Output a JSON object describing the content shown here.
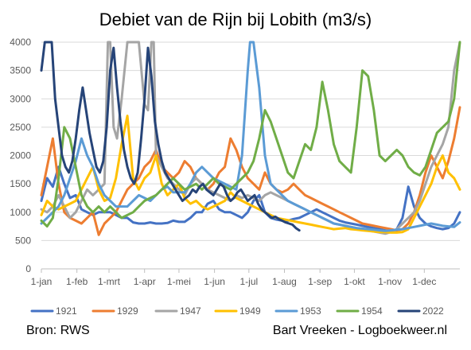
{
  "footer": {
    "source": "Bron: RWS",
    "credit": "Bart Vreeken - Logboekweer.nl"
  },
  "chart_data": {
    "type": "line",
    "title": "Debiet van de Rijn bij Lobith (m3/s)",
    "xlabel": "",
    "ylabel": "",
    "ylim": [
      0,
      4000
    ],
    "y_ticks": [
      0,
      500,
      1000,
      1500,
      2000,
      2500,
      3000,
      3500,
      4000
    ],
    "x_range_days": [
      0,
      365
    ],
    "x_ticks": [
      {
        "label": "1-jan",
        "day": 0
      },
      {
        "label": "1-feb",
        "day": 31
      },
      {
        "label": "1-mrt",
        "day": 59
      },
      {
        "label": "1-apr",
        "day": 90
      },
      {
        "label": "1-mei",
        "day": 120
      },
      {
        "label": "1-jun",
        "day": 151
      },
      {
        "label": "1-jul",
        "day": 181
      },
      {
        "label": "1-aug",
        "day": 212
      },
      {
        "label": "1-sep",
        "day": 243
      },
      {
        "label": "1-okt",
        "day": 273
      },
      {
        "label": "1-nov",
        "day": 304
      },
      {
        "label": "1-dec",
        "day": 334
      }
    ],
    "grid": true,
    "legend_position": "bottom",
    "series": [
      {
        "name": "1921",
        "color": "#4472C4",
        "x": [
          0,
          5,
          10,
          15,
          20,
          25,
          30,
          35,
          40,
          45,
          50,
          55,
          60,
          65,
          70,
          75,
          80,
          85,
          90,
          95,
          100,
          105,
          110,
          115,
          120,
          125,
          130,
          135,
          140,
          145,
          150,
          155,
          160,
          165,
          170,
          175,
          180,
          185,
          190,
          195,
          200,
          205,
          210,
          215,
          220,
          225,
          230,
          235,
          240,
          245,
          250,
          255,
          260,
          265,
          270,
          275,
          280,
          285,
          290,
          295,
          300,
          305,
          310,
          315,
          320,
          325,
          330,
          335,
          340,
          345,
          350,
          355,
          360,
          365
        ],
        "y": [
          1200,
          1600,
          1450,
          1800,
          1500,
          1250,
          1300,
          1050,
          1000,
          950,
          1000,
          1000,
          1000,
          950,
          900,
          900,
          820,
          800,
          800,
          820,
          800,
          800,
          810,
          850,
          830,
          830,
          900,
          1000,
          1000,
          1150,
          1200,
          1050,
          1000,
          1000,
          950,
          900,
          1000,
          1200,
          1300,
          1000,
          900,
          870,
          850,
          850,
          880,
          900,
          950,
          1000,
          1050,
          1000,
          950,
          900,
          850,
          820,
          800,
          780,
          760,
          740,
          720,
          700,
          680,
          660,
          700,
          900,
          1450,
          1100,
          900,
          800,
          750,
          720,
          700,
          720,
          800,
          1000
        ]
      },
      {
        "name": "1929",
        "color": "#ED7D31",
        "x": [
          0,
          5,
          10,
          15,
          20,
          25,
          30,
          35,
          40,
          45,
          50,
          55,
          60,
          65,
          70,
          75,
          80,
          85,
          90,
          95,
          100,
          105,
          110,
          115,
          120,
          125,
          130,
          135,
          140,
          145,
          150,
          155,
          160,
          165,
          170,
          175,
          180,
          185,
          190,
          195,
          200,
          205,
          210,
          215,
          220,
          225,
          230,
          235,
          240,
          245,
          250,
          255,
          260,
          265,
          270,
          275,
          280,
          285,
          290,
          295,
          300,
          305,
          310,
          315,
          320,
          325,
          330,
          335,
          340,
          345,
          350,
          355,
          360,
          365
        ],
        "y": [
          1300,
          1800,
          2300,
          1500,
          1000,
          900,
          850,
          800,
          900,
          1000,
          600,
          800,
          900,
          1000,
          1200,
          1400,
          1500,
          1600,
          1800,
          1900,
          2100,
          1800,
          1700,
          1600,
          1700,
          1900,
          1800,
          1600,
          1500,
          1400,
          1500,
          1700,
          1800,
          2300,
          2100,
          1800,
          1600,
          1500,
          1400,
          1700,
          1500,
          1400,
          1350,
          1400,
          1500,
          1400,
          1300,
          1250,
          1200,
          1150,
          1100,
          1050,
          1000,
          950,
          900,
          850,
          800,
          780,
          760,
          740,
          720,
          700,
          680,
          700,
          800,
          1000,
          1300,
          1700,
          2000,
          1800,
          1600,
          1900,
          2300,
          2850
        ]
      },
      {
        "name": "1947",
        "color": "#A5A5A5",
        "x": [
          0,
          5,
          10,
          15,
          20,
          25,
          30,
          35,
          40,
          45,
          50,
          55,
          58,
          60,
          63,
          66,
          70,
          75,
          80,
          85,
          90,
          93,
          96,
          98,
          100,
          105,
          110,
          115,
          120,
          125,
          130,
          135,
          140,
          145,
          150,
          155,
          160,
          165,
          170,
          175,
          180,
          185,
          190,
          195,
          200,
          205,
          210,
          215,
          220,
          225,
          230,
          235,
          240,
          245,
          250,
          255,
          260,
          265,
          270,
          275,
          280,
          285,
          290,
          295,
          300,
          305,
          310,
          315,
          320,
          325,
          330,
          335,
          340,
          345,
          350,
          355,
          360,
          365
        ],
        "y": [
          1050,
          1000,
          1100,
          1300,
          1100,
          900,
          1000,
          1200,
          1400,
          1300,
          1400,
          1500,
          4000,
          4000,
          2500,
          2300,
          3000,
          4000,
          4000,
          4000,
          2900,
          2800,
          4000,
          4000,
          2000,
          1800,
          1600,
          1500,
          1400,
          1300,
          1500,
          1600,
          1500,
          1400,
          1350,
          1300,
          1250,
          1200,
          1300,
          1250,
          1300,
          1250,
          1200,
          1300,
          1350,
          1300,
          1250,
          1200,
          1150,
          1100,
          1050,
          1000,
          950,
          900,
          850,
          800,
          780,
          760,
          740,
          720,
          700,
          680,
          660,
          640,
          620,
          650,
          700,
          800,
          900,
          1000,
          1200,
          1500,
          1800,
          2000,
          2200,
          2500,
          3500,
          4000
        ]
      },
      {
        "name": "1949",
        "color": "#FFC000",
        "x": [
          0,
          5,
          10,
          15,
          20,
          25,
          30,
          35,
          40,
          45,
          50,
          55,
          60,
          65,
          70,
          75,
          80,
          85,
          90,
          95,
          100,
          105,
          110,
          115,
          120,
          125,
          130,
          135,
          140,
          145,
          150,
          155,
          160,
          165,
          170,
          175,
          180,
          185,
          190,
          195,
          200,
          205,
          210,
          215,
          220,
          225,
          230,
          235,
          240,
          245,
          250,
          255,
          260,
          265,
          270,
          275,
          280,
          285,
          290,
          295,
          300,
          305,
          310,
          315,
          320,
          325,
          330,
          335,
          340,
          345,
          350,
          355,
          360,
          365
        ],
        "y": [
          950,
          1200,
          1100,
          1050,
          1100,
          1150,
          1200,
          1400,
          1600,
          1800,
          1400,
          1200,
          1250,
          1600,
          2200,
          2700,
          1600,
          1400,
          1600,
          1700,
          2000,
          1500,
          1300,
          1400,
          1500,
          1250,
          1150,
          1200,
          1100,
          1050,
          1100,
          1150,
          1200,
          1350,
          1250,
          1200,
          1150,
          1100,
          1050,
          1000,
          950,
          900,
          880,
          860,
          840,
          820,
          800,
          780,
          760,
          740,
          720,
          700,
          710,
          720,
          700,
          690,
          680,
          670,
          660,
          650,
          650,
          640,
          640,
          650,
          700,
          900,
          1100,
          1300,
          1500,
          1800,
          2000,
          1700,
          1600,
          1400
        ]
      },
      {
        "name": "1953",
        "color": "#5B9BD5",
        "x": [
          0,
          5,
          10,
          15,
          20,
          25,
          30,
          35,
          40,
          45,
          50,
          55,
          60,
          65,
          70,
          75,
          80,
          85,
          90,
          95,
          100,
          105,
          110,
          115,
          120,
          125,
          130,
          135,
          140,
          145,
          150,
          155,
          160,
          165,
          170,
          175,
          180,
          182,
          185,
          190,
          195,
          200,
          205,
          210,
          215,
          220,
          225,
          230,
          235,
          240,
          245,
          250,
          255,
          260,
          265,
          270,
          275,
          280,
          285,
          290,
          295,
          300,
          305,
          310,
          315,
          320,
          325,
          330,
          335,
          340,
          345,
          350,
          355,
          360,
          365
        ],
        "y": [
          800,
          900,
          1000,
          1100,
          1300,
          1600,
          1900,
          2300,
          2000,
          1800,
          1500,
          1300,
          1200,
          1100,
          1100,
          1100,
          1200,
          1300,
          1250,
          1200,
          1300,
          1400,
          1450,
          1350,
          1350,
          1350,
          1500,
          1700,
          1800,
          1700,
          1600,
          1550,
          1500,
          1450,
          1400,
          2000,
          3500,
          4000,
          4000,
          3200,
          2000,
          1500,
          1400,
          1300,
          1200,
          1150,
          1100,
          1050,
          1000,
          950,
          900,
          850,
          800,
          780,
          760,
          740,
          720,
          710,
          700,
          690,
          680,
          670,
          680,
          690,
          700,
          720,
          740,
          760,
          780,
          800,
          780,
          760,
          750,
          740,
          820
        ]
      },
      {
        "name": "1954",
        "color": "#70AD47",
        "x": [
          0,
          5,
          10,
          15,
          20,
          25,
          30,
          35,
          40,
          45,
          50,
          55,
          60,
          65,
          70,
          75,
          80,
          85,
          90,
          95,
          100,
          105,
          110,
          115,
          120,
          125,
          130,
          135,
          140,
          145,
          150,
          155,
          160,
          165,
          170,
          175,
          180,
          185,
          190,
          195,
          200,
          205,
          210,
          215,
          220,
          225,
          230,
          235,
          240,
          245,
          250,
          255,
          260,
          265,
          270,
          275,
          280,
          285,
          290,
          295,
          300,
          305,
          310,
          315,
          320,
          325,
          330,
          335,
          340,
          345,
          350,
          355,
          360,
          365
        ],
        "y": [
          850,
          750,
          900,
          1600,
          2500,
          2300,
          1800,
          1300,
          1100,
          1000,
          1100,
          1000,
          1100,
          1000,
          900,
          950,
          1000,
          1100,
          1200,
          1250,
          1300,
          1400,
          1500,
          1600,
          1500,
          1400,
          1450,
          1500,
          1400,
          1500,
          1600,
          1500,
          1450,
          1400,
          1500,
          1600,
          1700,
          1900,
          2300,
          2800,
          2600,
          2300,
          2000,
          1700,
          1600,
          1900,
          2200,
          2100,
          2500,
          3300,
          2800,
          2200,
          1900,
          1800,
          1700,
          2500,
          3500,
          3400,
          2800,
          2000,
          1900,
          2000,
          2100,
          2000,
          1800,
          1700,
          1650,
          1800,
          2100,
          2400,
          2500,
          2600,
          3000,
          4000
        ]
      },
      {
        "name": "2022",
        "color": "#264478",
        "x": [
          0,
          3,
          6,
          9,
          12,
          15,
          18,
          21,
          24,
          27,
          30,
          33,
          36,
          39,
          42,
          45,
          48,
          51,
          54,
          57,
          60,
          63,
          66,
          69,
          72,
          75,
          78,
          81,
          84,
          87,
          90,
          93,
          96,
          99,
          102,
          105,
          108,
          111,
          114,
          117,
          120,
          123,
          126,
          129,
          132,
          135,
          138,
          141,
          144,
          147,
          150,
          153,
          156,
          159,
          162,
          165,
          168,
          171,
          174,
          177,
          180,
          183,
          186,
          189,
          192,
          195,
          198,
          201,
          204,
          207,
          210,
          213,
          216,
          219,
          222,
          225
        ],
        "y": [
          3500,
          4000,
          4000,
          4000,
          3000,
          2500,
          2000,
          1800,
          1700,
          1900,
          2300,
          2800,
          3200,
          2800,
          2400,
          2100,
          1800,
          1700,
          1900,
          2500,
          3500,
          3900,
          3200,
          2600,
          2100,
          1800,
          1600,
          1500,
          1700,
          2300,
          3000,
          3900,
          3400,
          2600,
          2200,
          1900,
          1700,
          1600,
          1500,
          1400,
          1300,
          1200,
          1250,
          1300,
          1400,
          1350,
          1450,
          1500,
          1400,
          1350,
          1300,
          1400,
          1500,
          1450,
          1300,
          1200,
          1250,
          1350,
          1400,
          1300,
          1200,
          1250,
          1300,
          1150,
          1050,
          1000,
          950,
          900,
          920,
          880,
          850,
          820,
          800,
          780,
          720,
          680
        ]
      }
    ]
  }
}
